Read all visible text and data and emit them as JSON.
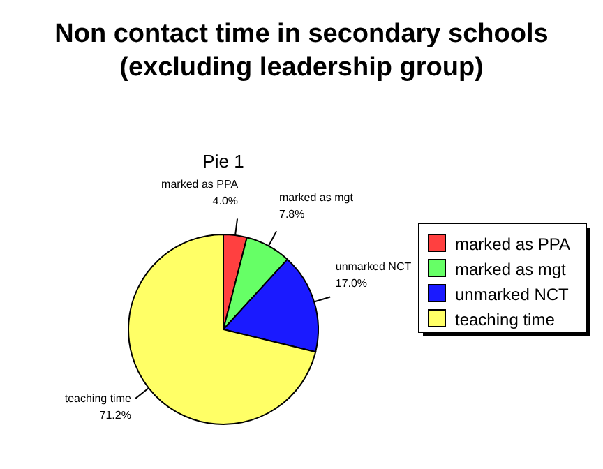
{
  "chart_data": {
    "type": "pie",
    "title": "Non contact time in secondary schools\n(excluding leadership group)",
    "subtitle": "Pie 1",
    "categories": [
      "marked as PPA",
      "marked as mgt",
      "unmarked NCT",
      "teaching time"
    ],
    "values": [
      4.0,
      7.8,
      17.0,
      71.2
    ],
    "value_labels": [
      "4.0%",
      "7.8%",
      "17.0%",
      "71.2%"
    ],
    "colors": [
      "#ff4040",
      "#66ff66",
      "#1a1aff",
      "#ffff66"
    ],
    "legend": "right"
  }
}
